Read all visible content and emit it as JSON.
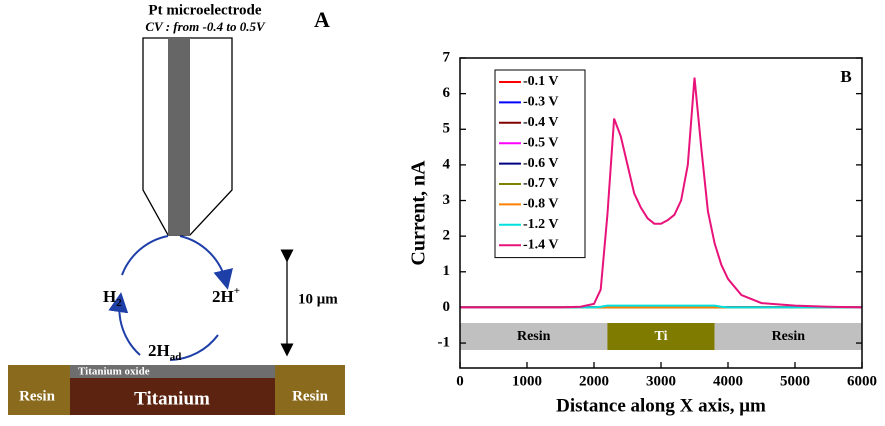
{
  "panel_a": {
    "label": "A",
    "title": "Pt microelectrode",
    "subtitle": "CV : from -0.4 to 0.5V",
    "h2": {
      "base": "H",
      "sub": "2"
    },
    "two_h_plus": {
      "base": "2H",
      "sup": "+"
    },
    "two_h_ad": {
      "base": "2H",
      "sub": "ad"
    },
    "distance": "10 μm",
    "oxide": "Titanium oxide",
    "left_resin": "Resin",
    "metal": "Titanium",
    "right_resin": "Resin"
  },
  "chart_data": {
    "type": "line",
    "panel_label": "B",
    "xlabel": "Distance along X axis, μm",
    "ylabel": "Current, nA",
    "xlim": [
      0,
      6000
    ],
    "xticks": [
      0,
      1000,
      2000,
      3000,
      4000,
      5000,
      6000
    ],
    "ylim": [
      -1.7,
      7
    ],
    "yticks": [
      -1,
      0,
      1,
      2,
      3,
      4,
      5,
      6,
      7
    ],
    "legend": "top-left",
    "regions": [
      {
        "label": "Resin",
        "from": 0,
        "to": 2200,
        "color": "#c0c0c0"
      },
      {
        "label": "Ti",
        "from": 2200,
        "to": 3800,
        "color": "#7f7a00"
      },
      {
        "label": "Resin",
        "from": 3800,
        "to": 6000,
        "color": "#c0c0c0"
      }
    ],
    "x": [
      0,
      500,
      1000,
      1500,
      1800,
      2000,
      2100,
      2200,
      2300,
      2400,
      2500,
      2600,
      2700,
      2800,
      2900,
      3000,
      3100,
      3200,
      3300,
      3400,
      3500,
      3600,
      3700,
      3800,
      3900,
      4000,
      4200,
      4500,
      5000,
      5500,
      6000
    ],
    "series": [
      {
        "name": "-0.1 V",
        "color": "#ff0000",
        "values": [
          0,
          0,
          0,
          0,
          0,
          0,
          0,
          0,
          0,
          0,
          0,
          0,
          0,
          0,
          0,
          0,
          0,
          0,
          0,
          0,
          0,
          0,
          0,
          0,
          0,
          0,
          0,
          0,
          0,
          0,
          0
        ]
      },
      {
        "name": "-0.3 V",
        "color": "#0000ff",
        "values": [
          0,
          0,
          0,
          0,
          0,
          0,
          0,
          0,
          0,
          0,
          0,
          0,
          0,
          0,
          0,
          0,
          0,
          0,
          0,
          0,
          0,
          0,
          0,
          0,
          0,
          0,
          0,
          0,
          0,
          0,
          0
        ]
      },
      {
        "name": "-0.4 V",
        "color": "#800000",
        "values": [
          0,
          0,
          0,
          0,
          0,
          0,
          0,
          0,
          0,
          0,
          0,
          0,
          0,
          0,
          0,
          0,
          0,
          0,
          0,
          0,
          0,
          0,
          0,
          0,
          0,
          0,
          0,
          0,
          0,
          0,
          0
        ]
      },
      {
        "name": "-0.5 V",
        "color": "#ff00ff",
        "values": [
          0,
          0,
          0,
          0,
          0,
          0,
          0,
          0,
          0,
          0,
          0,
          0,
          0,
          0,
          0,
          0,
          0,
          0,
          0,
          0,
          0,
          0,
          0,
          0,
          0,
          0,
          0,
          0,
          0,
          0,
          0
        ]
      },
      {
        "name": "-0.6 V",
        "color": "#000080",
        "values": [
          0,
          0,
          0,
          0,
          0,
          0,
          0,
          0,
          0,
          0,
          0,
          0,
          0,
          0,
          0,
          0,
          0,
          0,
          0,
          0,
          0,
          0,
          0,
          0,
          0,
          0,
          0,
          0,
          0,
          0,
          0
        ]
      },
      {
        "name": "-0.7 V",
        "color": "#808000",
        "values": [
          0,
          0,
          0,
          0,
          0,
          0,
          0,
          0,
          0,
          0,
          0,
          0,
          0,
          0,
          0,
          0,
          0,
          0,
          0,
          0,
          0,
          0,
          0,
          0,
          0,
          0,
          0,
          0,
          0,
          0,
          0
        ]
      },
      {
        "name": "-0.8 V",
        "color": "#ff8000",
        "values": [
          0,
          0,
          0,
          0,
          0,
          0,
          0,
          0,
          0,
          0,
          0,
          0,
          0,
          0,
          0,
          0,
          0,
          0,
          0,
          0,
          0,
          0,
          0,
          0,
          0,
          0,
          0,
          0,
          0,
          0,
          0
        ]
      },
      {
        "name": "-1.2 V",
        "color": "#00e0e0",
        "values": [
          0,
          0,
          0,
          0,
          0,
          0,
          0.02,
          0.05,
          0.05,
          0.05,
          0.05,
          0.05,
          0.05,
          0.05,
          0.05,
          0.05,
          0.05,
          0.05,
          0.05,
          0.05,
          0.05,
          0.05,
          0.05,
          0.05,
          0.02,
          0,
          0,
          0,
          0,
          0,
          0
        ]
      },
      {
        "name": "-1.4 V",
        "color": "#e8127a",
        "values": [
          0,
          0,
          0,
          0,
          0.02,
          0.1,
          0.5,
          2.6,
          5.3,
          4.8,
          4.0,
          3.2,
          2.8,
          2.5,
          2.35,
          2.35,
          2.45,
          2.6,
          3.0,
          4.0,
          6.45,
          4.5,
          2.7,
          1.8,
          1.2,
          0.8,
          0.35,
          0.12,
          0.05,
          0.02,
          0
        ]
      }
    ]
  }
}
